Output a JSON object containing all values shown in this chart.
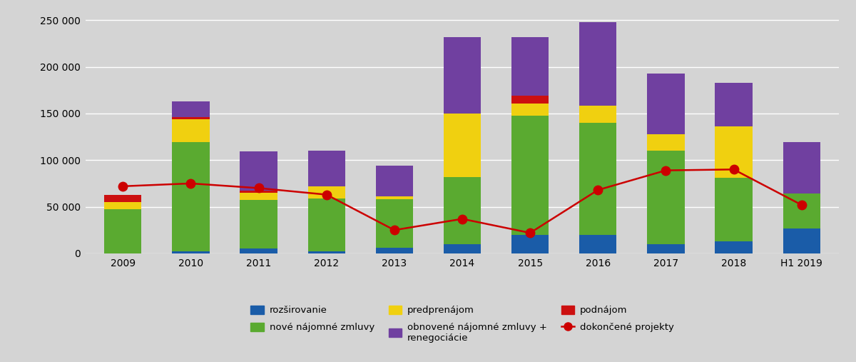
{
  "years": [
    "2009",
    "2010",
    "2011",
    "2012",
    "2013",
    "2014",
    "2015",
    "2016",
    "2017",
    "2018",
    "H1 2019"
  ],
  "rozsirovanie": [
    0,
    2000,
    5000,
    2000,
    6000,
    10000,
    20000,
    20000,
    10000,
    13000,
    27000
  ],
  "nove_najomne": [
    47000,
    117000,
    52000,
    57000,
    52000,
    72000,
    128000,
    120000,
    100000,
    68000,
    37000
  ],
  "predprenajom": [
    8000,
    25000,
    8000,
    13000,
    3000,
    68000,
    13000,
    18000,
    18000,
    55000,
    0
  ],
  "podnajem": [
    8000,
    2000,
    2000,
    0,
    0,
    0,
    8000,
    0,
    0,
    0,
    0
  ],
  "obnovene": [
    0,
    17000,
    42000,
    38000,
    33000,
    82000,
    63000,
    90000,
    65000,
    47000,
    55000
  ],
  "dokoncene": [
    72000,
    75000,
    70000,
    63000,
    25000,
    37000,
    22000,
    68000,
    89000,
    90000,
    52000
  ],
  "colors": {
    "rozsirovanie": "#1a5ca8",
    "nove_najomne": "#5aaa30",
    "predprenajom": "#f0d010",
    "podnajem": "#cc1010",
    "obnovene": "#7040a0",
    "dokoncene_line": "#cc0000",
    "dokoncene_fill": "#cc0000"
  },
  "ylim": [
    0,
    260000
  ],
  "yticks": [
    0,
    50000,
    100000,
    150000,
    200000,
    250000
  ],
  "ytick_labels": [
    "0",
    "50 000",
    "100 000",
    "150 000",
    "200 000",
    "250 000"
  ],
  "background_color": "#d4d4d4",
  "bar_width": 0.55,
  "legend": {
    "rozsirovanie": "rozširovanie",
    "nove_najomne": "nové nájomné zmluvy",
    "predprenajom": "predprenájom",
    "podnajem": "podnájom",
    "obnovene": "obnovené nájomné zmluvy +\nrenegociácie",
    "dokoncene": "dokončené projekty"
  }
}
